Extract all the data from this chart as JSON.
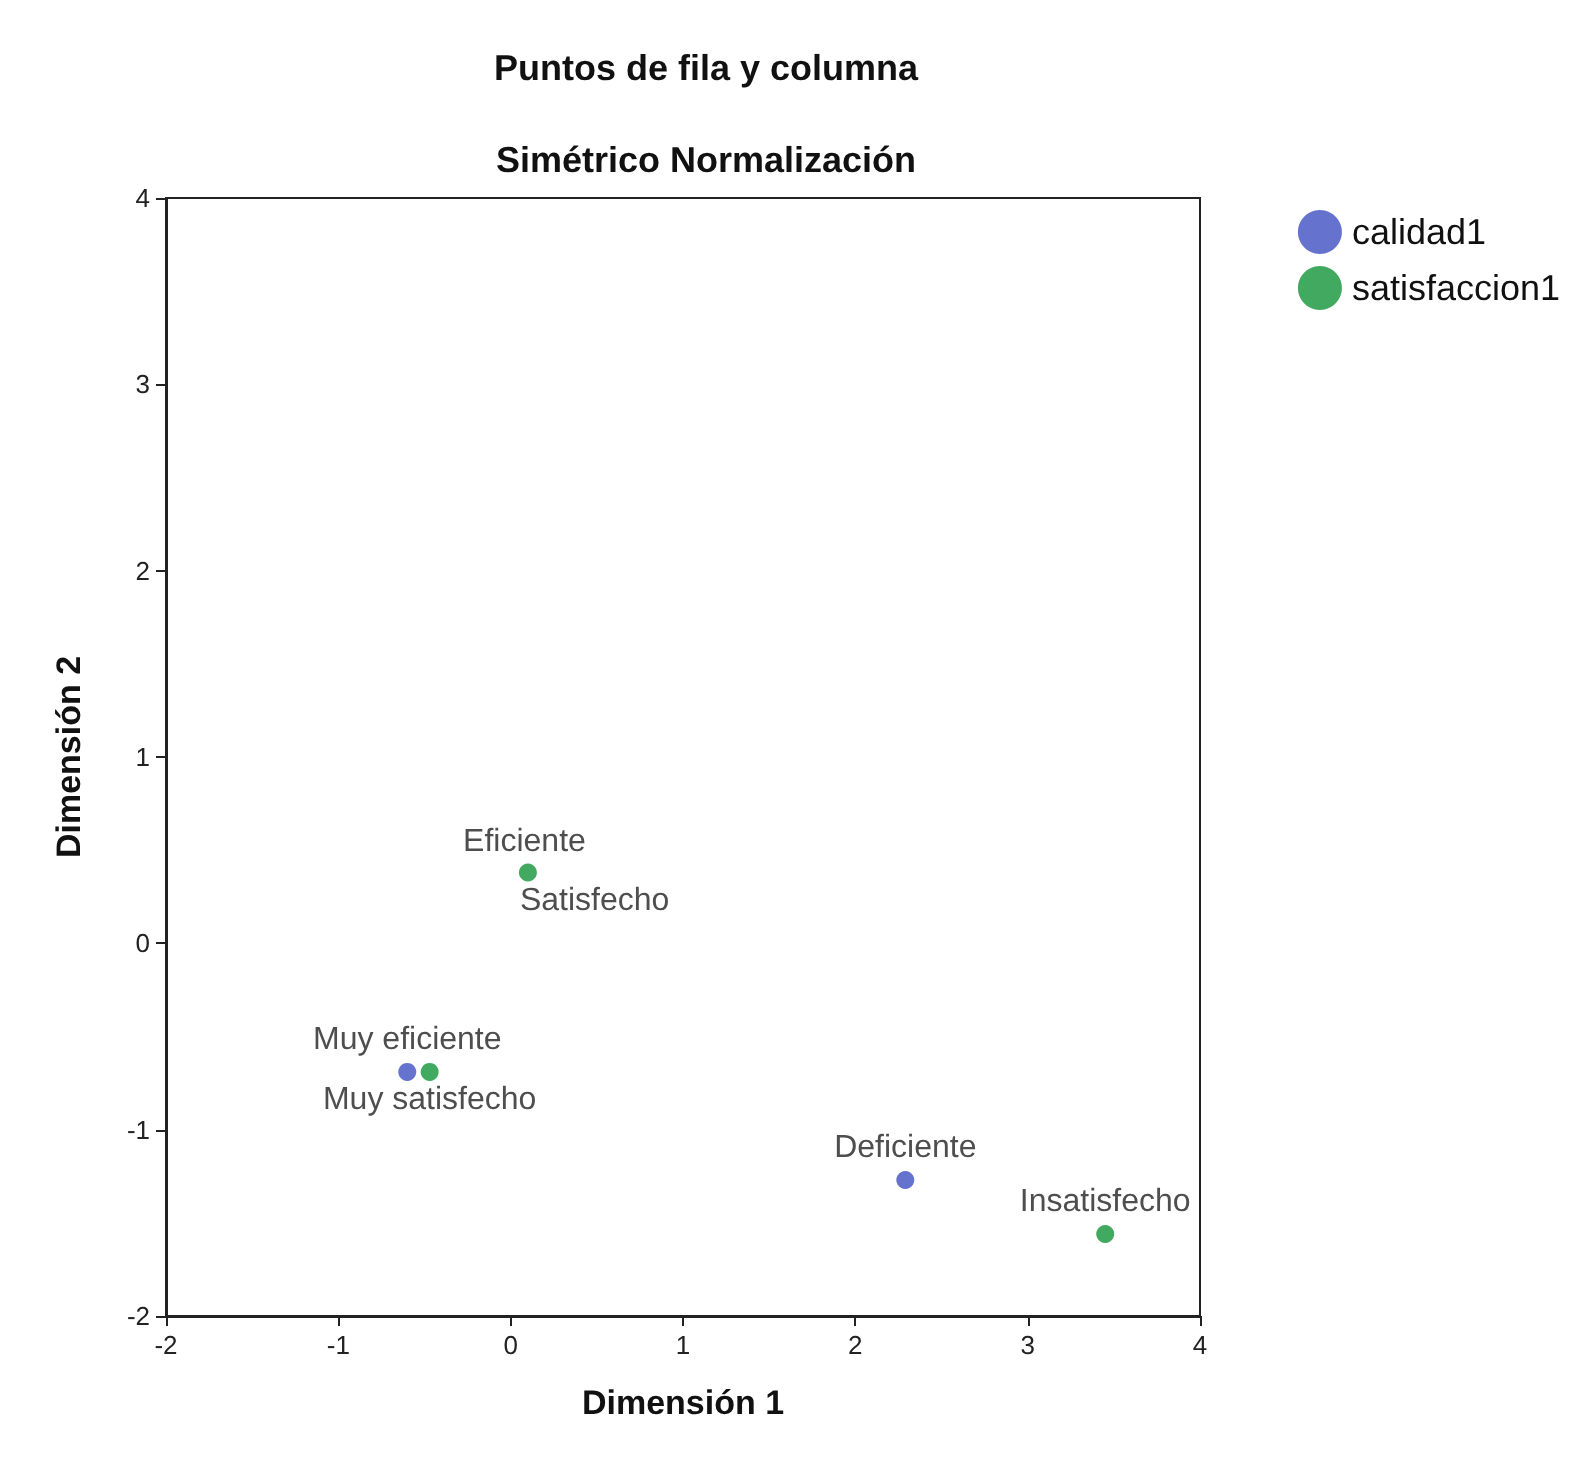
{
  "chart_data": {
    "type": "scatter",
    "title": "Puntos de fila y columna",
    "subtitle": "Simétrico Normalización",
    "xlabel": "Dimensión 1",
    "ylabel": "Dimensión 2",
    "series": [
      {
        "name": "calidad1",
        "color": "#3f4fc2",
        "x": [
          null,
          -0.6,
          2.29
        ],
        "values": [
          null,
          -0.69,
          -1.27
        ]
      },
      {
        "name": "satisfaccion1",
        "color": "#13943a",
        "x": [
          0.1,
          -0.47,
          3.45
        ],
        "values": [
          0.38,
          -0.69,
          -1.56
        ]
      }
    ],
    "annotations": [
      {
        "text": "Eficiente",
        "x": 0.08,
        "y": 0.37
      },
      {
        "text": "Satisfecho",
        "x": 0.1,
        "y": 0.38
      },
      {
        "text": "Muy eficiente",
        "x": -0.6,
        "y": -0.69
      },
      {
        "text": "Muy satisfecho",
        "x": -0.47,
        "y": -0.69
      },
      {
        "text": "Deficiente",
        "x": 2.29,
        "y": -1.27
      },
      {
        "text": "Insatisfecho",
        "x": 3.45,
        "y": -1.56
      }
    ],
    "xlim": [
      -2,
      4
    ],
    "xticks": [
      -2,
      -1,
      0,
      1,
      2,
      3,
      4
    ],
    "ylim": [
      -2,
      4
    ],
    "yticks": [
      -2,
      -1,
      0,
      1,
      2,
      3,
      4
    ],
    "legend": "top right",
    "marker": "circle",
    "grid": false
  }
}
